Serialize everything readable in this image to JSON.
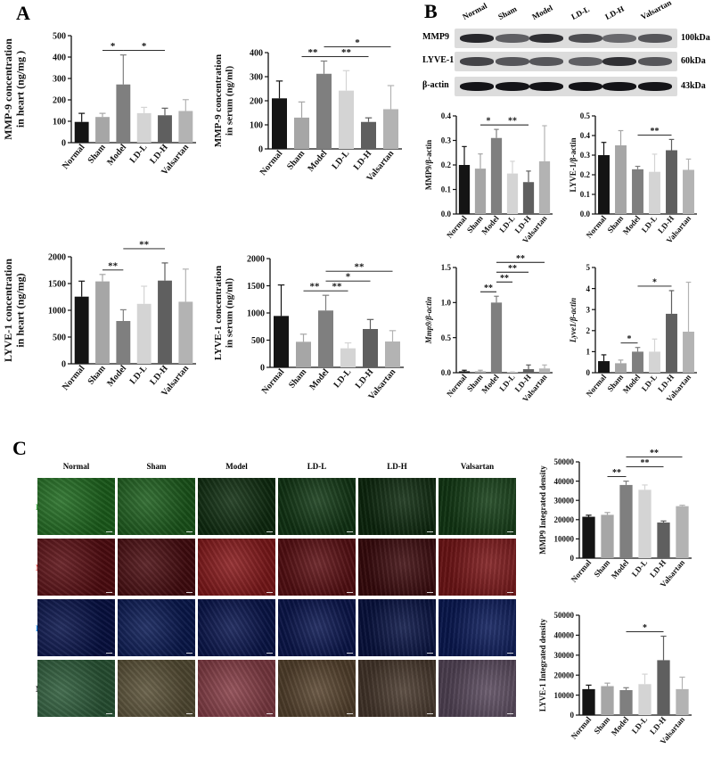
{
  "panel_letters": {
    "a": "A",
    "b": "B",
    "c": "C"
  },
  "groups": [
    "Normal",
    "Sham",
    "Model",
    "LD-L",
    "LD-H",
    "Valsartan"
  ],
  "colors": {
    "Normal": "#141414",
    "Sham": "#a6a6a6",
    "Model": "#7f7f7f",
    "LD-L": "#d4d4d4",
    "LD-H": "#5f5f5f",
    "Valsartan": "#b3b3b3",
    "axis": "#111111"
  },
  "western_blot": {
    "lanes": [
      "Normal",
      "Sham",
      "Model",
      "LD-L",
      "LD-H",
      "Valsartan"
    ],
    "rows": [
      {
        "label": "MMP9",
        "kda": "100kDa",
        "intensity": [
          0.85,
          0.55,
          0.8,
          0.65,
          0.5,
          0.6
        ]
      },
      {
        "label": "LYVE-1",
        "kda": "60kDa",
        "intensity": [
          0.7,
          0.6,
          0.6,
          0.55,
          0.8,
          0.6
        ]
      },
      {
        "label": "β-actin",
        "kda": "43kDa",
        "intensity": [
          0.95,
          0.95,
          0.95,
          0.95,
          0.95,
          0.95
        ]
      }
    ]
  },
  "if_images": {
    "columns": [
      "Normal",
      "Sham",
      "Model",
      "LD-L",
      "LD-H",
      "Valsartan"
    ],
    "rows": [
      {
        "label": "LYVE-1",
        "color": "#4caf50",
        "tints": [
          "#1f6b1f",
          "#1d5f1d",
          "#0f2e10",
          "#123915",
          "#0d2a0e",
          "#133d15"
        ]
      },
      {
        "label": "MMP9",
        "color": "#e53935",
        "tints": [
          "#5a0d12",
          "#4a0c10",
          "#8a1a1c",
          "#5e1014",
          "#3d0a0d",
          "#7c1618"
        ]
      },
      {
        "label": "DAPI",
        "color": "#1e88e5",
        "tints": [
          "#07124a",
          "#0a1a55",
          "#0a1650",
          "#0b1752",
          "#081345",
          "#0a1a5a"
        ]
      },
      {
        "label": "Merge",
        "color": "#111111",
        "tints": [
          "#2d5c3a",
          "#5b5238",
          "#8a4049",
          "#5a4630",
          "#4a3a2e",
          "#5a4a5e"
        ]
      }
    ]
  },
  "chart_data": [
    {
      "id": "A1",
      "type": "bar",
      "categories": [
        "Normal",
        "Sham",
        "Model",
        "LD-L",
        "LD-H",
        "Valsartan"
      ],
      "values": [
        97,
        120,
        272,
        138,
        128,
        148
      ],
      "errors": [
        40,
        17,
        138,
        27,
        33,
        53
      ],
      "ylabel": "MMP-9 concentration\nin heart (ng/mg )",
      "italic_ylabel": false,
      "ylim": [
        0,
        500
      ],
      "yticks": [
        0,
        100,
        200,
        300,
        400,
        500
      ],
      "yticklabels": [
        "0",
        "100",
        "200",
        "300",
        "400",
        "500"
      ],
      "significance": [
        {
          "from": 1,
          "to": 2,
          "text": "*",
          "level": 0
        },
        {
          "from": 2,
          "to": 4,
          "text": "*",
          "level": 0
        }
      ]
    },
    {
      "id": "A2",
      "type": "bar",
      "categories": [
        "Normal",
        "Sham",
        "Model",
        "LD-L",
        "LD-H",
        "Valsartan"
      ],
      "values": [
        210,
        130,
        312,
        242,
        112,
        165
      ],
      "errors": [
        72,
        65,
        53,
        83,
        17,
        98
      ],
      "ylabel": "MMP-9 concentration\nin serum (ng/ml)",
      "italic_ylabel": false,
      "ylim": [
        0,
        400
      ],
      "yticks": [
        0,
        100,
        200,
        300,
        400
      ],
      "yticklabels": [
        "0",
        "100",
        "200",
        "300",
        "400"
      ],
      "significance": [
        {
          "from": 1,
          "to": 2,
          "text": "**",
          "level": 0
        },
        {
          "from": 2,
          "to": 4,
          "text": "**",
          "level": 0
        },
        {
          "from": 2,
          "to": 5,
          "text": "*",
          "level": 1
        }
      ]
    },
    {
      "id": "A3",
      "type": "bar",
      "categories": [
        "Normal",
        "Sham",
        "Model",
        "LD-L",
        "LD-H",
        "Valsartan"
      ],
      "values": [
        1255,
        1540,
        800,
        1120,
        1555,
        1160
      ],
      "errors": [
        290,
        130,
        210,
        330,
        330,
        610
      ],
      "ylabel": "LYVE-1 concentration\nin heart (ng/mg)",
      "italic_ylabel": false,
      "ylim": [
        0,
        2000
      ],
      "yticks": [
        0,
        500,
        1000,
        1500,
        2000
      ],
      "yticklabels": [
        "0",
        "500",
        "1000",
        "1500",
        "2000"
      ],
      "significance": [
        {
          "from": 1,
          "to": 2,
          "text": "**",
          "level": 0
        },
        {
          "from": 2,
          "to": 4,
          "text": "**",
          "level": 1
        }
      ]
    },
    {
      "id": "A4",
      "type": "bar",
      "categories": [
        "Normal",
        "Sham",
        "Model",
        "LD-L",
        "LD-H",
        "Valsartan"
      ],
      "values": [
        945,
        470,
        1045,
        350,
        705,
        475
      ],
      "errors": [
        570,
        140,
        280,
        100,
        175,
        200
      ],
      "ylabel": "LYVE-1 concentration\nin serum (ng/ml)",
      "italic_ylabel": false,
      "ylim": [
        0,
        2000
      ],
      "yticks": [
        0,
        500,
        1000,
        1500,
        2000
      ],
      "yticklabels": [
        "0",
        "500",
        "1000",
        "1500",
        "2000"
      ],
      "significance": [
        {
          "from": 1,
          "to": 2,
          "text": "**",
          "level": 0
        },
        {
          "from": 2,
          "to": 3,
          "text": "**",
          "level": 0
        },
        {
          "from": 2,
          "to": 4,
          "text": "*",
          "level": 1
        },
        {
          "from": 2,
          "to": 5,
          "text": "**",
          "level": 2
        }
      ]
    },
    {
      "id": "B1",
      "type": "bar",
      "categories": [
        "Normal",
        "Sham",
        "Model",
        "LD-L",
        "LD-H",
        "Valsartan"
      ],
      "values": [
        0.2,
        0.185,
        0.31,
        0.165,
        0.13,
        0.215
      ],
      "errors": [
        0.075,
        0.06,
        0.035,
        0.05,
        0.045,
        0.145
      ],
      "ylabel": "MMP9/β-actin",
      "italic_ylabel": false,
      "ylim": [
        0,
        0.4
      ],
      "yticks": [
        0,
        0.1,
        0.2,
        0.3,
        0.4
      ],
      "yticklabels": [
        "0.0",
        "0.1",
        "0.2",
        "0.3",
        "0.4"
      ],
      "significance": [
        {
          "from": 1,
          "to": 2,
          "text": "*",
          "level": 0
        },
        {
          "from": 2,
          "to": 4,
          "text": "**",
          "level": 0
        }
      ]
    },
    {
      "id": "B2",
      "type": "bar",
      "categories": [
        "Normal",
        "Sham",
        "Model",
        "LD-L",
        "LD-H",
        "Valsartan"
      ],
      "values": [
        0.3,
        0.35,
        0.228,
        0.215,
        0.325,
        0.225
      ],
      "errors": [
        0.065,
        0.075,
        0.015,
        0.09,
        0.055,
        0.055
      ],
      "ylabel": "LYVE-1/β-actin",
      "italic_ylabel": false,
      "ylim": [
        0,
        0.5
      ],
      "yticks": [
        0,
        0.1,
        0.2,
        0.3,
        0.4,
        0.5
      ],
      "yticklabels": [
        "0.0",
        "0.1",
        "0.2",
        "0.3",
        "0.4",
        "0.5"
      ],
      "significance": [
        {
          "from": 2,
          "to": 4,
          "text": "**",
          "level": 0
        }
      ]
    },
    {
      "id": "B3",
      "type": "bar",
      "categories": [
        "Normal",
        "Sham",
        "Model",
        "LD-L",
        "LD-H",
        "Valsartan"
      ],
      "values": [
        0.02,
        0.02,
        1.0,
        0.01,
        0.05,
        0.06
      ],
      "errors": [
        0.015,
        0.015,
        0.09,
        0.005,
        0.06,
        0.05
      ],
      "ylabel": "Mmp9/β-actin",
      "italic_ylabel": true,
      "ylim": [
        0,
        1.5
      ],
      "yticks": [
        0,
        0.5,
        1.0,
        1.5
      ],
      "yticklabels": [
        "0.0",
        "0.5",
        "1.0",
        "1.5"
      ],
      "significance": [
        {
          "from": 1,
          "to": 2,
          "text": "**",
          "level": 0
        },
        {
          "from": 2,
          "to": 3,
          "text": "**",
          "level": 1
        },
        {
          "from": 2,
          "to": 4,
          "text": "**",
          "level": 2
        },
        {
          "from": 2,
          "to": 5,
          "text": "**",
          "level": 3
        }
      ]
    },
    {
      "id": "B4",
      "type": "bar",
      "categories": [
        "Normal",
        "Sham",
        "Model",
        "LD-L",
        "LD-H",
        "Valsartan"
      ],
      "values": [
        0.55,
        0.45,
        1.0,
        1.0,
        2.8,
        1.95
      ],
      "errors": [
        0.3,
        0.15,
        0.2,
        0.6,
        1.1,
        2.35
      ],
      "ylabel": "Lyve1/β-actin",
      "italic_ylabel": true,
      "ylim": [
        0,
        5
      ],
      "yticks": [
        0,
        1,
        2,
        3,
        4,
        5
      ],
      "yticklabels": [
        "0",
        "1",
        "2",
        "3",
        "4",
        "5"
      ],
      "significance": [
        {
          "from": 1,
          "to": 2,
          "text": "*",
          "level": 0
        },
        {
          "from": 2,
          "to": 4,
          "text": "*",
          "level": 0
        }
      ]
    },
    {
      "id": "C1",
      "type": "bar",
      "categories": [
        "Normal",
        "Sham",
        "Model",
        "LD-L",
        "LD-H",
        "Valsartan"
      ],
      "values": [
        21500,
        22500,
        38000,
        35500,
        18500,
        27000
      ],
      "errors": [
        800,
        1200,
        2000,
        2500,
        800,
        500
      ],
      "ylabel": "MMP9 Integrated density",
      "italic_ylabel": false,
      "ylim": [
        0,
        50000
      ],
      "yticks": [
        0,
        10000,
        20000,
        30000,
        40000,
        50000
      ],
      "yticklabels": [
        "0",
        "10000",
        "20000",
        "30000",
        "40000",
        "50000"
      ],
      "significance": [
        {
          "from": 1,
          "to": 2,
          "text": "**",
          "level": 0
        },
        {
          "from": 2,
          "to": 4,
          "text": "**",
          "level": 1
        },
        {
          "from": 2,
          "to": 5,
          "text": "**",
          "level": 2
        }
      ]
    },
    {
      "id": "C2",
      "type": "bar",
      "categories": [
        "Normal",
        "Sham",
        "Model",
        "LD-L",
        "LD-H",
        "Valsartan"
      ],
      "values": [
        13000,
        14500,
        12500,
        15500,
        27500,
        13000
      ],
      "errors": [
        2000,
        1500,
        1200,
        5000,
        12000,
        6000
      ],
      "ylabel": "LYVE-1 Integrated density",
      "italic_ylabel": false,
      "ylim": [
        0,
        50000
      ],
      "yticks": [
        0,
        10000,
        20000,
        30000,
        40000,
        50000
      ],
      "yticklabels": [
        "0",
        "10000",
        "20000",
        "30000",
        "40000",
        "50000"
      ],
      "significance": [
        {
          "from": 2,
          "to": 4,
          "text": "*",
          "level": 0
        }
      ]
    }
  ]
}
